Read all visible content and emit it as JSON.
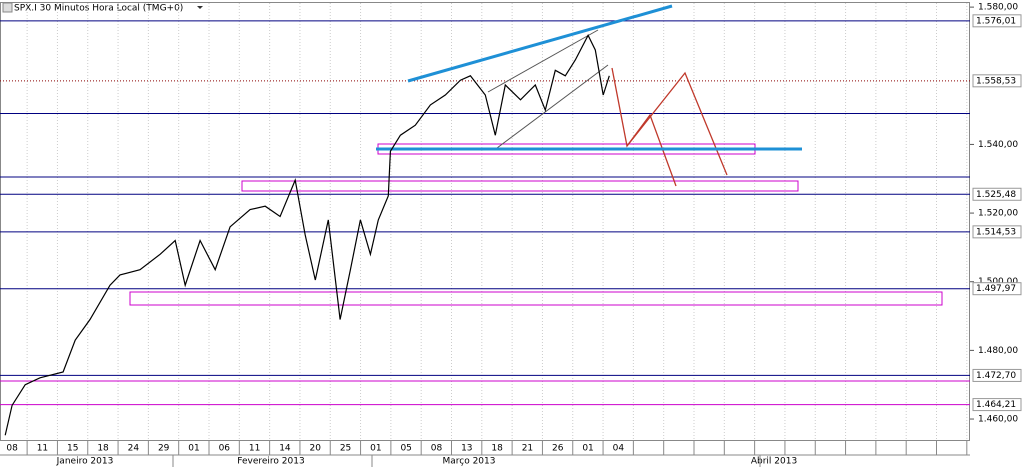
{
  "chart_data": {
    "type": "line",
    "title": "SPX.I 30 Minutos Hora Local (TMG+0)",
    "categories": [
      "08",
      "11",
      "15",
      "18",
      "24",
      "29",
      "01",
      "06",
      "11",
      "14",
      "20",
      "25",
      "01",
      "05",
      "08",
      "13",
      "18",
      "21",
      "26",
      "01",
      "04",
      null,
      null,
      null,
      null,
      null,
      null,
      null,
      null,
      null,
      null,
      null
    ],
    "months": [
      "Janeiro 2013",
      "Fevereiro 2013",
      "Março 2013",
      "Abril 2013"
    ],
    "series": [
      {
        "name": "SPX.I",
        "color": "#000000",
        "x": [
          -0.23,
          0,
          0.43,
          0.92,
          1.68,
          2.08,
          2.57,
          3.23,
          3.56,
          4.22,
          4.88,
          5.38,
          5.71,
          6.2,
          6.7,
          7.19,
          7.85,
          8.35,
          8.84,
          9.34,
          9.67,
          10,
          10.43,
          10.82,
          11.16,
          11.49,
          11.82,
          12.08,
          12.41,
          12.48,
          12.81,
          13.3,
          13.8,
          14.29,
          14.79,
          15.12,
          15.61,
          15.94,
          16.27,
          16.77,
          17.26,
          17.59,
          17.92,
          18.25,
          18.58,
          19.0,
          19.24,
          19.5,
          19.7
        ],
        "values": [
          1455.3,
          1464,
          1470,
          1472,
          1473.7,
          1483,
          1489,
          1499,
          1502,
          1503.5,
          1508,
          1512,
          1499,
          1512,
          1503.5,
          1516,
          1521,
          1522,
          1519,
          1529.6,
          1513.6,
          1500.5,
          1518,
          1489,
          1503.5,
          1518,
          1508,
          1518,
          1525,
          1538,
          1542.7,
          1545.6,
          1551.5,
          1554.4,
          1558.7,
          1560,
          1554.4,
          1542.7,
          1557.3,
          1553,
          1557.3,
          1550,
          1561.6,
          1560,
          1564.6,
          1571.8,
          1567.5,
          1554.4,
          1560
        ]
      }
    ],
    "xlim": [
      -0.4,
      31.6
    ],
    "ylim": [
      1453.6,
      1581.2
    ],
    "yticks": [
      {
        "value": 1580,
        "label": "1.580,00"
      },
      {
        "value": 1540,
        "label": "1.540,00"
      },
      {
        "value": 1520,
        "label": "1.520,00"
      },
      {
        "value": 1500,
        "label": "1.500,00"
      },
      {
        "value": 1480,
        "label": "1.480,00"
      },
      {
        "value": 1460,
        "label": "1.460,00"
      }
    ],
    "levels": [
      {
        "value": 1576.01,
        "label": "1.576,01",
        "color": "#000080"
      },
      {
        "value": 1558.53,
        "label": "1.558,53",
        "color": "#8b0000"
      },
      {
        "value": 1525.48,
        "label": "1.525,48",
        "color": "#000080"
      },
      {
        "value": 1514.53,
        "label": "1.514,53",
        "color": "#000080"
      },
      {
        "value": 1497.97,
        "label": "1.497,97",
        "color": "#000080"
      },
      {
        "value": 1472.7,
        "label": "1.472,70",
        "color": "#000080"
      },
      {
        "value": 1464.21,
        "label": "1.464,21",
        "color": "#cc00cc"
      }
    ],
    "extra_levels": [
      1549,
      1530.5
    ]
  }
}
